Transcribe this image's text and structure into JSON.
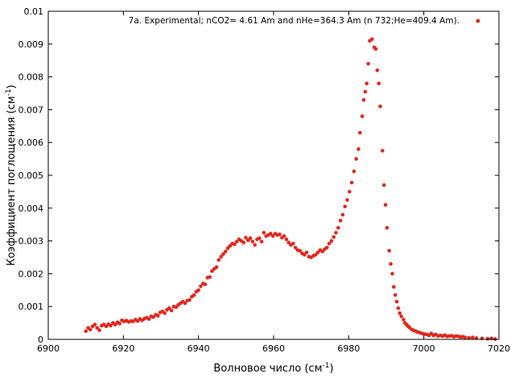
{
  "chart_data": {
    "type": "scatter",
    "xlabel": {
      "base": "Волновое число (см",
      "sup": "-1",
      "tail": ")"
    },
    "ylabel": {
      "base": "Коэффициент поглощения (см",
      "sup": "-1",
      "tail": ")"
    },
    "xlim": [
      6900,
      7020
    ],
    "ylim": [
      0,
      0.01
    ],
    "xticks": [
      "6900",
      "6920",
      "6940",
      "6960",
      "6980",
      "7000",
      "7020"
    ],
    "yticks": [
      "0",
      "0.001",
      "0.002",
      "0.003",
      "0.004",
      "0.005",
      "0.006",
      "0.007",
      "0.008",
      "0.009",
      "0.01"
    ],
    "grid": false,
    "legend_position": "top-right",
    "marker_color": "#e3261c",
    "series": [
      {
        "name": "7a. Experimental;  nCO2= 4.61 Am and nHe=364.3 Am (n  732;He=409.4 Am).",
        "points": [
          [
            6910.0,
            0.00025
          ],
          [
            6910.6,
            0.00035
          ],
          [
            6911.2,
            0.0003
          ],
          [
            6911.8,
            0.0004
          ],
          [
            6912.4,
            0.00045
          ],
          [
            6913.0,
            0.00035
          ],
          [
            6913.6,
            0.00028
          ],
          [
            6914.2,
            0.00042
          ],
          [
            6914.8,
            0.00045
          ],
          [
            6915.4,
            0.0004
          ],
          [
            6916.0,
            0.00046
          ],
          [
            6916.6,
            0.00042
          ],
          [
            6917.2,
            0.0005
          ],
          [
            6917.8,
            0.00045
          ],
          [
            6918.4,
            0.00052
          ],
          [
            6919.0,
            0.00048
          ],
          [
            6919.6,
            0.00058
          ],
          [
            6920.2,
            0.00055
          ],
          [
            6920.8,
            0.00057
          ],
          [
            6921.4,
            0.00053
          ],
          [
            6922.0,
            0.00056
          ],
          [
            6922.6,
            0.00055
          ],
          [
            6923.2,
            0.0006
          ],
          [
            6923.8,
            0.00056
          ],
          [
            6924.4,
            0.00062
          ],
          [
            6925.0,
            0.00058
          ],
          [
            6925.6,
            0.00063
          ],
          [
            6926.2,
            0.00066
          ],
          [
            6926.8,
            0.00062
          ],
          [
            6927.4,
            0.0007
          ],
          [
            6928.0,
            0.00068
          ],
          [
            6928.6,
            0.00075
          ],
          [
            6929.2,
            0.00072
          ],
          [
            6929.8,
            0.00082
          ],
          [
            6930.4,
            0.00085
          ],
          [
            6931.0,
            0.0008
          ],
          [
            6931.6,
            0.0009
          ],
          [
            6932.2,
            0.00095
          ],
          [
            6932.8,
            0.00088
          ],
          [
            6933.4,
            0.001
          ],
          [
            6934.0,
            0.00098
          ],
          [
            6934.6,
            0.00105
          ],
          [
            6935.2,
            0.0011
          ],
          [
            6935.8,
            0.00115
          ],
          [
            6936.4,
            0.0011
          ],
          [
            6937.0,
            0.00118
          ],
          [
            6937.6,
            0.0012
          ],
          [
            6938.2,
            0.0013
          ],
          [
            6938.8,
            0.00135
          ],
          [
            6939.4,
            0.00145
          ],
          [
            6940.0,
            0.0015
          ],
          [
            6940.6,
            0.00162
          ],
          [
            6941.2,
            0.0017
          ],
          [
            6941.8,
            0.00168
          ],
          [
            6942.4,
            0.00188
          ],
          [
            6943.0,
            0.0019
          ],
          [
            6943.6,
            0.00208
          ],
          [
            6944.2,
            0.00215
          ],
          [
            6944.8,
            0.0022
          ],
          [
            6945.4,
            0.00242
          ],
          [
            6946.0,
            0.00252
          ],
          [
            6946.6,
            0.0026
          ],
          [
            6947.2,
            0.00268
          ],
          [
            6947.8,
            0.00278
          ],
          [
            6948.4,
            0.00285
          ],
          [
            6949.0,
            0.00292
          ],
          [
            6949.6,
            0.0029
          ],
          [
            6950.2,
            0.00298
          ],
          [
            6950.8,
            0.00305
          ],
          [
            6951.4,
            0.003
          ],
          [
            6952.0,
            0.00295
          ],
          [
            6952.6,
            0.0031
          ],
          [
            6953.2,
            0.00302
          ],
          [
            6953.8,
            0.00308
          ],
          [
            6954.4,
            0.00298
          ],
          [
            6955.0,
            0.00288
          ],
          [
            6955.6,
            0.00305
          ],
          [
            6956.2,
            0.00308
          ],
          [
            6956.8,
            0.00298
          ],
          [
            6957.4,
            0.00325
          ],
          [
            6958.0,
            0.00315
          ],
          [
            6958.6,
            0.00318
          ],
          [
            6959.2,
            0.00322
          ],
          [
            6959.8,
            0.00315
          ],
          [
            6960.4,
            0.00322
          ],
          [
            6961.0,
            0.00318
          ],
          [
            6961.6,
            0.0032
          ],
          [
            6962.2,
            0.0031
          ],
          [
            6962.8,
            0.00315
          ],
          [
            6963.4,
            0.00305
          ],
          [
            6964.0,
            0.00295
          ],
          [
            6964.6,
            0.00288
          ],
          [
            6965.2,
            0.00292
          ],
          [
            6965.8,
            0.0028
          ],
          [
            6966.4,
            0.00272
          ],
          [
            6967.0,
            0.0027
          ],
          [
            6967.6,
            0.00262
          ],
          [
            6968.2,
            0.00258
          ],
          [
            6968.8,
            0.00265
          ],
          [
            6969.4,
            0.00252
          ],
          [
            6970.0,
            0.0025
          ],
          [
            6970.6,
            0.00255
          ],
          [
            6971.2,
            0.00258
          ],
          [
            6971.8,
            0.00265
          ],
          [
            6972.4,
            0.00272
          ],
          [
            6973.0,
            0.00268
          ],
          [
            6973.6,
            0.00275
          ],
          [
            6974.2,
            0.0028
          ],
          [
            6974.8,
            0.00292
          ],
          [
            6975.4,
            0.003
          ],
          [
            6976.0,
            0.00312
          ],
          [
            6976.6,
            0.00325
          ],
          [
            6977.2,
            0.0034
          ],
          [
            6977.8,
            0.00362
          ],
          [
            6978.4,
            0.0038
          ],
          [
            6979.0,
            0.00405
          ],
          [
            6979.6,
            0.00425
          ],
          [
            6980.2,
            0.0045
          ],
          [
            6980.8,
            0.00478
          ],
          [
            6981.4,
            0.00512
          ],
          [
            6982.0,
            0.0055
          ],
          [
            6982.6,
            0.0058
          ],
          [
            6983.0,
            0.0063
          ],
          [
            6983.6,
            0.0068
          ],
          [
            6984.0,
            0.0073
          ],
          [
            6984.4,
            0.00755
          ],
          [
            6984.8,
            0.0078
          ],
          [
            6985.2,
            0.0084
          ],
          [
            6985.6,
            0.0091
          ],
          [
            6986.2,
            0.00915
          ],
          [
            6986.8,
            0.0089
          ],
          [
            6987.2,
            0.00885
          ],
          [
            6987.6,
            0.0082
          ],
          [
            6988.0,
            0.0078
          ],
          [
            6988.4,
            0.0071
          ],
          [
            6989.0,
            0.00575
          ],
          [
            6989.4,
            0.0047
          ],
          [
            6989.8,
            0.0041
          ],
          [
            6990.2,
            0.0034
          ],
          [
            6990.8,
            0.0027
          ],
          [
            6991.2,
            0.0023
          ],
          [
            6991.6,
            0.002
          ],
          [
            6992.0,
            0.0016
          ],
          [
            6992.4,
            0.00135
          ],
          [
            6992.8,
            0.00115
          ],
          [
            6993.2,
            0.00095
          ],
          [
            6993.6,
            0.0008
          ],
          [
            6994.0,
            0.0007
          ],
          [
            6994.6,
            0.0006
          ],
          [
            6995.0,
            0.0005
          ],
          [
            6995.4,
            0.00045
          ],
          [
            6995.8,
            0.0004
          ],
          [
            6996.2,
            0.00036
          ],
          [
            6996.8,
            0.0003
          ],
          [
            6997.2,
            0.00028
          ],
          [
            6997.8,
            0.00025
          ],
          [
            6998.4,
            0.00022
          ],
          [
            6999.0,
            0.0002
          ],
          [
            6999.6,
            0.00018
          ],
          [
            7000.2,
            0.00016
          ],
          [
            7000.8,
            0.00015
          ],
          [
            7001.4,
            0.00012
          ],
          [
            7002.0,
            0.00018
          ],
          [
            7002.6,
            0.00012
          ],
          [
            7003.2,
            0.00015
          ],
          [
            7003.8,
            0.0001
          ],
          [
            7004.4,
            0.00012
          ],
          [
            7005.0,
            0.0001
          ],
          [
            7005.6,
            0.00013
          ],
          [
            7006.2,
            9e-05
          ],
          [
            7006.8,
            0.0001
          ],
          [
            7007.4,
            0.00011
          ],
          [
            7008.0,
            8e-05
          ],
          [
            7008.6,
            0.0001
          ],
          [
            7009.2,
            9e-05
          ],
          [
            7009.8,
            7e-05
          ],
          [
            7010.4,
            8e-05
          ],
          [
            7011.0,
            6e-05
          ],
          [
            7012.0,
            5e-05
          ],
          [
            7013.0,
            6e-05
          ],
          [
            7014.0,
            4e-05
          ],
          [
            7015.5,
            3e-05
          ],
          [
            7017.0,
            2e-05
          ],
          [
            7018.0,
            3e-05
          ],
          [
            7019.0,
            1e-05
          ]
        ]
      }
    ]
  }
}
